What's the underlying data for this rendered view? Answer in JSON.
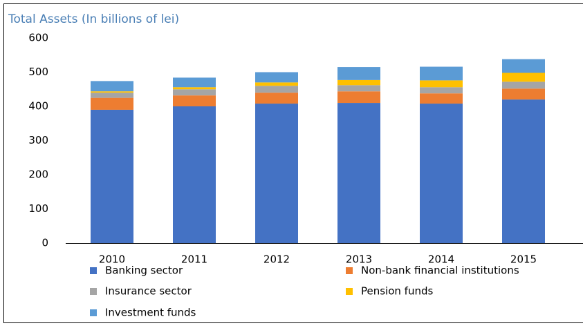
{
  "chart_data": {
    "type": "stacked_bar",
    "title": "Total Assets (In billions of lei)",
    "categories": [
      "2010",
      "2011",
      "2012",
      "2013",
      "2014",
      "2015"
    ],
    "series": [
      {
        "name": "Banking sector",
        "color": "#4472c4",
        "values": [
          390,
          400,
          408,
          410,
          408,
          420
        ]
      },
      {
        "name": "Non-bank financial institutions",
        "color": "#ed7d31",
        "values": [
          35,
          32,
          32,
          34,
          30,
          32
        ]
      },
      {
        "name": "Insurance sector",
        "color": "#a5a5a5",
        "values": [
          15,
          18,
          20,
          18,
          18,
          20
        ]
      },
      {
        "name": "Pension funds",
        "color": "#ffc000",
        "values": [
          4,
          6,
          10,
          15,
          20,
          26
        ]
      },
      {
        "name": "Investment funds",
        "color": "#5b9bd5",
        "values": [
          30,
          28,
          30,
          38,
          40,
          40
        ]
      }
    ],
    "ylim": [
      0,
      600
    ],
    "yticks": [
      0,
      100,
      200,
      300,
      400,
      500,
      600
    ],
    "grid": false
  }
}
